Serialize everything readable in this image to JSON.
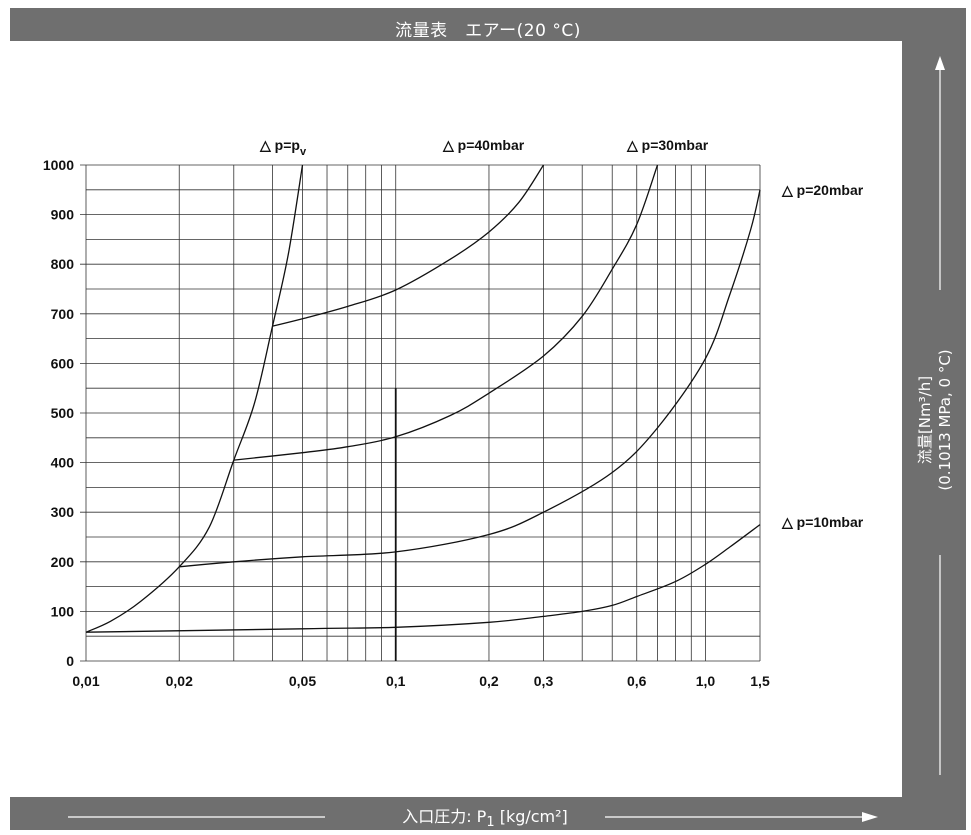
{
  "header": {
    "title": "流量表　エアー(20 °C)"
  },
  "footer": {
    "xlabel_prefix": "入口圧力: P",
    "xlabel_sub": "1",
    "xlabel_unit": " [kg/cm²]"
  },
  "side": {
    "ylabel_line1": "流量[Nm³/h]",
    "ylabel_line2": "(0.1013 MPa, 0 °C)"
  },
  "chart_data": {
    "type": "line",
    "xscale": "log",
    "xlim": [
      0.01,
      1.5
    ],
    "ylim": [
      0,
      1000
    ],
    "grid": true,
    "xlabel": "入口圧力: P1 [kg/cm²]",
    "ylabel": "流量[Nm³/h] (0.1013 MPa, 0 °C)",
    "x_ticks": [
      {
        "value": 0.01,
        "label": "0,01"
      },
      {
        "value": 0.02,
        "label": "0,02"
      },
      {
        "value": 0.05,
        "label": "0,05"
      },
      {
        "value": 0.1,
        "label": "0,1"
      },
      {
        "value": 0.2,
        "label": "0,2"
      },
      {
        "value": 0.3,
        "label": "0,3"
      },
      {
        "value": 0.6,
        "label": "0,6"
      },
      {
        "value": 1.0,
        "label": "1,0"
      },
      {
        "value": 1.5,
        "label": "1,5"
      }
    ],
    "x_gridlines": [
      0.01,
      0.02,
      0.03,
      0.04,
      0.05,
      0.06,
      0.07,
      0.08,
      0.09,
      0.1,
      0.2,
      0.3,
      0.4,
      0.5,
      0.6,
      0.7,
      0.8,
      0.9,
      1.0,
      1.5
    ],
    "y_ticks": [
      {
        "value": 0,
        "label": "0"
      },
      {
        "value": 100,
        "label": "100"
      },
      {
        "value": 200,
        "label": "200"
      },
      {
        "value": 300,
        "label": "300"
      },
      {
        "value": 400,
        "label": "400"
      },
      {
        "value": 500,
        "label": "500"
      },
      {
        "value": 600,
        "label": "600"
      },
      {
        "value": 700,
        "label": "700"
      },
      {
        "value": 800,
        "label": "800"
      },
      {
        "value": 900,
        "label": "900"
      },
      {
        "value": 1000,
        "label": "1000"
      }
    ],
    "y_gridlines": [
      0,
      50,
      100,
      150,
      200,
      250,
      300,
      350,
      400,
      450,
      500,
      550,
      600,
      650,
      700,
      750,
      800,
      850,
      900,
      950,
      1000
    ],
    "series": [
      {
        "name": "△ p=pv",
        "label_main": "△ p=p",
        "label_sub": "v",
        "points": [
          [
            0.01,
            58
          ],
          [
            0.012,
            80
          ],
          [
            0.015,
            120
          ],
          [
            0.02,
            190
          ],
          [
            0.025,
            270
          ],
          [
            0.03,
            405
          ],
          [
            0.035,
            520
          ],
          [
            0.04,
            675
          ],
          [
            0.045,
            820
          ],
          [
            0.05,
            1000
          ]
        ]
      },
      {
        "name": "△ p=40mbar",
        "label_main": "△ p=40mbar",
        "points": [
          [
            0.04,
            675
          ],
          [
            0.05,
            690
          ],
          [
            0.07,
            715
          ],
          [
            0.1,
            748
          ],
          [
            0.15,
            810
          ],
          [
            0.2,
            865
          ],
          [
            0.25,
            925
          ],
          [
            0.3,
            1000
          ]
        ]
      },
      {
        "name": "△ p=30mbar",
        "label_main": "△ p=30mbar",
        "points": [
          [
            0.03,
            405
          ],
          [
            0.05,
            420
          ],
          [
            0.07,
            432
          ],
          [
            0.1,
            452
          ],
          [
            0.15,
            495
          ],
          [
            0.2,
            540
          ],
          [
            0.3,
            615
          ],
          [
            0.4,
            695
          ],
          [
            0.5,
            790
          ],
          [
            0.6,
            880
          ],
          [
            0.7,
            1000
          ]
        ]
      },
      {
        "name": "△ p=20mbar",
        "label_main": "△ p=20mbar",
        "points": [
          [
            0.02,
            190
          ],
          [
            0.03,
            200
          ],
          [
            0.05,
            210
          ],
          [
            0.1,
            220
          ],
          [
            0.2,
            255
          ],
          [
            0.3,
            300
          ],
          [
            0.5,
            380
          ],
          [
            0.7,
            470
          ],
          [
            1.0,
            610
          ],
          [
            1.2,
            740
          ],
          [
            1.4,
            870
          ],
          [
            1.5,
            950
          ]
        ]
      },
      {
        "name": "△ p=10mbar",
        "label_main": "△ p=10mbar",
        "points": [
          [
            0.01,
            58
          ],
          [
            0.05,
            65
          ],
          [
            0.1,
            68
          ],
          [
            0.2,
            78
          ],
          [
            0.3,
            90
          ],
          [
            0.4,
            100
          ],
          [
            0.5,
            112
          ],
          [
            0.6,
            130
          ],
          [
            0.8,
            160
          ],
          [
            1.0,
            195
          ],
          [
            1.2,
            230
          ],
          [
            1.5,
            275
          ]
        ]
      }
    ],
    "annotations": [
      {
        "text": "vertical marker line",
        "x": 0.1,
        "y_range": [
          0,
          550
        ]
      }
    ]
  }
}
